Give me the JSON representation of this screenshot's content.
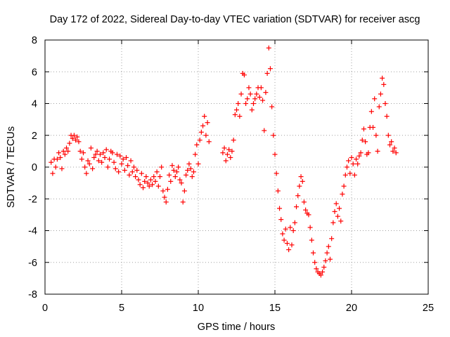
{
  "chart_data": {
    "type": "scatter",
    "title": "Day 172 of 2022, Sidereal Day-to-day VTEC variation (SDTVAR) for receiver ascg",
    "xlabel": "GPS time / hours",
    "ylabel": "SDTVAR / TECUs",
    "xlim": [
      0,
      25
    ],
    "ylim": [
      -8,
      8
    ],
    "x_ticks": [
      "0",
      "5",
      "10",
      "15",
      "20",
      "25"
    ],
    "y_ticks": [
      "-8",
      "-6",
      "-4",
      "-2",
      "0",
      "2",
      "4",
      "6",
      "8"
    ],
    "grid": true,
    "marker": "+",
    "color": "#ff0000",
    "series": [
      {
        "name": "SDTVAR",
        "points": [
          [
            0.4,
            0.3
          ],
          [
            0.5,
            -0.4
          ],
          [
            0.6,
            0.5
          ],
          [
            0.7,
            0.0
          ],
          [
            0.8,
            0.5
          ],
          [
            0.9,
            0.9
          ],
          [
            1.0,
            0.6
          ],
          [
            1.1,
            -0.1
          ],
          [
            1.2,
            1.0
          ],
          [
            1.3,
            0.8
          ],
          [
            1.4,
            1.2
          ],
          [
            1.5,
            1.0
          ],
          [
            1.6,
            1.5
          ],
          [
            1.7,
            2.0
          ],
          [
            1.8,
            1.8
          ],
          [
            1.9,
            2.0
          ],
          [
            2.0,
            1.7
          ],
          [
            2.1,
            1.9
          ],
          [
            2.2,
            1.6
          ],
          [
            2.3,
            1.0
          ],
          [
            2.4,
            0.5
          ],
          [
            2.5,
            0.9
          ],
          [
            2.6,
            0.0
          ],
          [
            2.7,
            -0.4
          ],
          [
            2.8,
            0.4
          ],
          [
            2.9,
            0.2
          ],
          [
            3.0,
            1.2
          ],
          [
            3.1,
            -0.1
          ],
          [
            3.2,
            0.6
          ],
          [
            3.3,
            0.8
          ],
          [
            3.4,
            1.0
          ],
          [
            3.5,
            0.4
          ],
          [
            3.6,
            0.8
          ],
          [
            3.7,
            0.3
          ],
          [
            3.8,
            0.9
          ],
          [
            3.9,
            0.6
          ],
          [
            4.0,
            1.1
          ],
          [
            4.1,
            0.0
          ],
          [
            4.2,
            0.5
          ],
          [
            4.3,
            1.0
          ],
          [
            4.4,
            0.9
          ],
          [
            4.5,
            0.3
          ],
          [
            4.6,
            -0.1
          ],
          [
            4.7,
            0.8
          ],
          [
            4.8,
            -0.3
          ],
          [
            4.9,
            0.7
          ],
          [
            5.0,
            0.2
          ],
          [
            5.1,
            0.5
          ],
          [
            5.2,
            -0.2
          ],
          [
            5.3,
            0.6
          ],
          [
            5.4,
            0.1
          ],
          [
            5.5,
            -0.5
          ],
          [
            5.6,
            0.4
          ],
          [
            5.7,
            -0.3
          ],
          [
            5.8,
            0.0
          ],
          [
            5.9,
            -0.6
          ],
          [
            6.0,
            -0.2
          ],
          [
            6.1,
            -0.8
          ],
          [
            6.2,
            -1.1
          ],
          [
            6.3,
            -0.4
          ],
          [
            6.4,
            -1.3
          ],
          [
            6.5,
            -0.9
          ],
          [
            6.6,
            -0.6
          ],
          [
            6.7,
            -1.0
          ],
          [
            6.8,
            -1.2
          ],
          [
            6.9,
            -0.8
          ],
          [
            7.0,
            -1.1
          ],
          [
            7.1,
            -0.6
          ],
          [
            7.2,
            -0.9
          ],
          [
            7.3,
            -0.3
          ],
          [
            7.4,
            -1.2
          ],
          [
            7.5,
            -0.6
          ],
          [
            7.6,
            0.0
          ],
          [
            7.7,
            -1.5
          ],
          [
            7.8,
            -1.9
          ],
          [
            7.9,
            -2.2
          ],
          [
            8.0,
            -1.4
          ],
          [
            8.1,
            -0.5
          ],
          [
            8.2,
            -0.9
          ],
          [
            8.3,
            0.1
          ],
          [
            8.4,
            -0.2
          ],
          [
            8.5,
            -0.6
          ],
          [
            8.6,
            -0.3
          ],
          [
            8.7,
            0.0
          ],
          [
            8.8,
            -0.8
          ],
          [
            8.9,
            -1.0
          ],
          [
            9.0,
            -2.2
          ],
          [
            9.1,
            -1.5
          ],
          [
            9.2,
            -0.5
          ],
          [
            9.3,
            -0.2
          ],
          [
            9.4,
            0.2
          ],
          [
            9.5,
            -0.1
          ],
          [
            9.6,
            -0.6
          ],
          [
            9.7,
            -0.3
          ],
          [
            9.8,
            0.8
          ],
          [
            9.9,
            1.4
          ],
          [
            10.0,
            0.2
          ],
          [
            10.1,
            1.7
          ],
          [
            10.2,
            2.2
          ],
          [
            10.3,
            2.6
          ],
          [
            10.4,
            3.2
          ],
          [
            10.5,
            2.0
          ],
          [
            10.6,
            2.8
          ],
          [
            10.7,
            1.6
          ],
          [
            11.6,
            0.9
          ],
          [
            11.7,
            1.2
          ],
          [
            11.8,
            0.4
          ],
          [
            11.9,
            0.8
          ],
          [
            12.0,
            1.1
          ],
          [
            12.1,
            0.6
          ],
          [
            12.2,
            1.0
          ],
          [
            12.3,
            1.7
          ],
          [
            12.4,
            3.3
          ],
          [
            12.5,
            3.6
          ],
          [
            12.6,
            4.0
          ],
          [
            12.7,
            3.2
          ],
          [
            12.8,
            4.6
          ],
          [
            12.9,
            5.9
          ],
          [
            13.0,
            5.8
          ],
          [
            13.1,
            4.0
          ],
          [
            13.2,
            4.3
          ],
          [
            13.3,
            5.0
          ],
          [
            13.4,
            4.6
          ],
          [
            13.5,
            3.6
          ],
          [
            13.6,
            4.0
          ],
          [
            13.7,
            4.3
          ],
          [
            13.8,
            4.6
          ],
          [
            13.9,
            5.0
          ],
          [
            14.0,
            4.4
          ],
          [
            14.1,
            5.0
          ],
          [
            14.2,
            4.2
          ],
          [
            14.3,
            2.3
          ],
          [
            14.4,
            4.7
          ],
          [
            14.5,
            5.9
          ],
          [
            14.6,
            7.5
          ],
          [
            14.7,
            6.2
          ],
          [
            14.8,
            3.8
          ],
          [
            14.9,
            2.0
          ],
          [
            15.0,
            0.8
          ],
          [
            15.1,
            -0.4
          ],
          [
            15.2,
            -1.5
          ],
          [
            15.3,
            -2.6
          ],
          [
            15.4,
            -3.3
          ],
          [
            15.5,
            -4.2
          ],
          [
            15.6,
            -4.6
          ],
          [
            15.7,
            -3.9
          ],
          [
            15.8,
            -4.8
          ],
          [
            15.9,
            -5.2
          ],
          [
            16.0,
            -3.8
          ],
          [
            16.1,
            -4.9
          ],
          [
            16.2,
            -4.0
          ],
          [
            16.3,
            -3.5
          ],
          [
            16.4,
            -2.5
          ],
          [
            16.5,
            -1.8
          ],
          [
            16.6,
            -1.2
          ],
          [
            16.7,
            -0.6
          ],
          [
            16.8,
            -0.9
          ],
          [
            16.9,
            -2.2
          ],
          [
            17.0,
            -2.7
          ],
          [
            17.1,
            -2.9
          ],
          [
            17.2,
            -3.0
          ],
          [
            17.3,
            -3.8
          ],
          [
            17.4,
            -4.6
          ],
          [
            17.5,
            -5.4
          ],
          [
            17.6,
            -6.0
          ],
          [
            17.7,
            -6.4
          ],
          [
            17.8,
            -6.6
          ],
          [
            17.9,
            -6.7
          ],
          [
            18.0,
            -6.8
          ],
          [
            18.1,
            -6.6
          ],
          [
            18.2,
            -6.3
          ],
          [
            18.3,
            -5.9
          ],
          [
            18.4,
            -5.4
          ],
          [
            18.5,
            -5.0
          ],
          [
            18.6,
            -5.8
          ],
          [
            18.7,
            -4.5
          ],
          [
            18.8,
            -3.5
          ],
          [
            18.9,
            -2.8
          ],
          [
            19.0,
            -2.3
          ],
          [
            19.1,
            -3.1
          ],
          [
            19.2,
            -2.6
          ],
          [
            19.3,
            -3.4
          ],
          [
            19.4,
            -1.7
          ],
          [
            19.5,
            -1.2
          ],
          [
            19.6,
            -0.5
          ],
          [
            19.7,
            0.0
          ],
          [
            19.8,
            0.4
          ],
          [
            19.9,
            -0.4
          ],
          [
            20.0,
            0.6
          ],
          [
            20.1,
            0.2
          ],
          [
            20.2,
            -0.5
          ],
          [
            20.3,
            0.5
          ],
          [
            20.4,
            0.2
          ],
          [
            20.5,
            0.7
          ],
          [
            20.6,
            0.9
          ],
          [
            20.7,
            1.7
          ],
          [
            20.8,
            2.4
          ],
          [
            20.9,
            1.6
          ],
          [
            21.0,
            0.8
          ],
          [
            21.1,
            0.9
          ],
          [
            21.2,
            2.5
          ],
          [
            21.3,
            3.5
          ],
          [
            21.4,
            2.5
          ],
          [
            21.5,
            4.3
          ],
          [
            21.6,
            2.0
          ],
          [
            21.7,
            1.0
          ],
          [
            21.8,
            3.8
          ],
          [
            21.9,
            4.6
          ],
          [
            22.0,
            5.6
          ],
          [
            22.1,
            5.2
          ],
          [
            22.2,
            4.0
          ],
          [
            22.3,
            3.2
          ],
          [
            22.4,
            2.0
          ],
          [
            22.5,
            1.4
          ],
          [
            22.6,
            1.6
          ],
          [
            22.7,
            1.0
          ],
          [
            22.8,
            1.2
          ],
          [
            22.9,
            0.9
          ]
        ]
      }
    ]
  }
}
